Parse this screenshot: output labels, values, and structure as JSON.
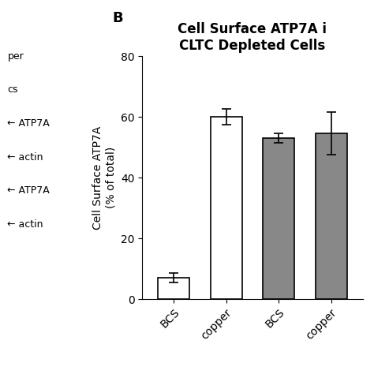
{
  "chart_data": {
    "type": "bar",
    "title": "Cell Surface ATP7A i\nCLTC Depleted Cells",
    "ylabel": "Cell Surface ATP7A\n(% of total)",
    "categories": [
      "BCS",
      "copper",
      "BCS",
      "copper"
    ],
    "values": [
      7.0,
      60.0,
      53.0,
      54.5
    ],
    "errors": [
      1.5,
      2.5,
      1.5,
      7.0
    ],
    "colors": [
      "white",
      "white",
      "#888888",
      "#888888"
    ],
    "ylim": [
      0,
      80
    ],
    "yticks": [
      0,
      20,
      40,
      60,
      80
    ],
    "annotations": [
      "B",
      "per",
      "cs",
      "← ATP7A",
      "← actin",
      "← ATP7A",
      "← actin"
    ]
  }
}
